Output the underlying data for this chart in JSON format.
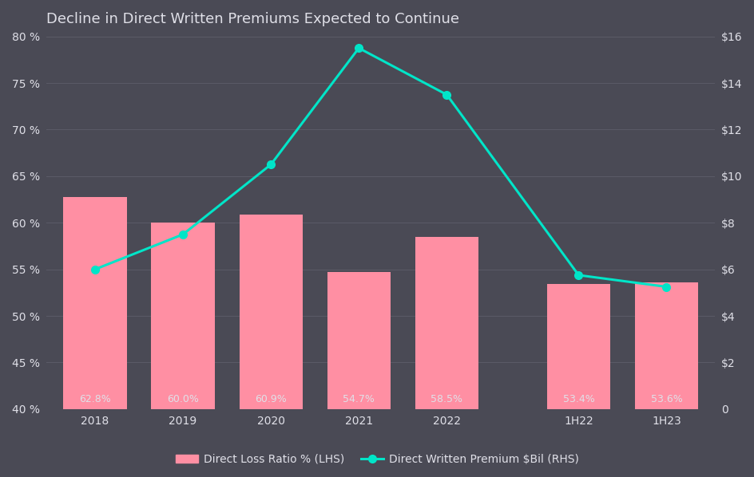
{
  "title": "Decline in Direct Written Premiums Expected to Continue",
  "categories": [
    "2018",
    "2019",
    "2020",
    "2021",
    "2022",
    "1H22",
    "1H23"
  ],
  "bar_values": [
    62.8,
    60.0,
    60.9,
    54.7,
    58.5,
    53.4,
    53.6
  ],
  "line_values": [
    6.0,
    7.5,
    10.5,
    15.5,
    13.5,
    5.75,
    5.25
  ],
  "bar_color": "#FF8FA3",
  "line_color": "#00E5C8",
  "background_color": "#4A4A55",
  "text_color": "#E0E0E8",
  "grid_color": "#5A5A66",
  "lhs_ylim": [
    40,
    80
  ],
  "rhs_ylim": [
    0,
    16
  ],
  "lhs_yticks": [
    40,
    45,
    50,
    55,
    60,
    65,
    70,
    75,
    80
  ],
  "rhs_yticks": [
    0,
    2,
    4,
    6,
    8,
    10,
    12,
    14,
    16
  ],
  "legend_label_bar": "Direct Loss Ratio % (LHS)",
  "legend_label_line": "Direct Written Premium $Bil (RHS)",
  "bar_labels": [
    "62.8%",
    "60.0%",
    "60.9%",
    "54.7%",
    "58.5%",
    "53.4%",
    "53.6%"
  ],
  "title_fontsize": 13,
  "tick_fontsize": 10,
  "label_fontsize": 9,
  "figsize": [
    9.45,
    5.98
  ],
  "dpi": 100,
  "positions": [
    0,
    1,
    2,
    3,
    4,
    5.5,
    6.5
  ],
  "bar_width": 0.72
}
